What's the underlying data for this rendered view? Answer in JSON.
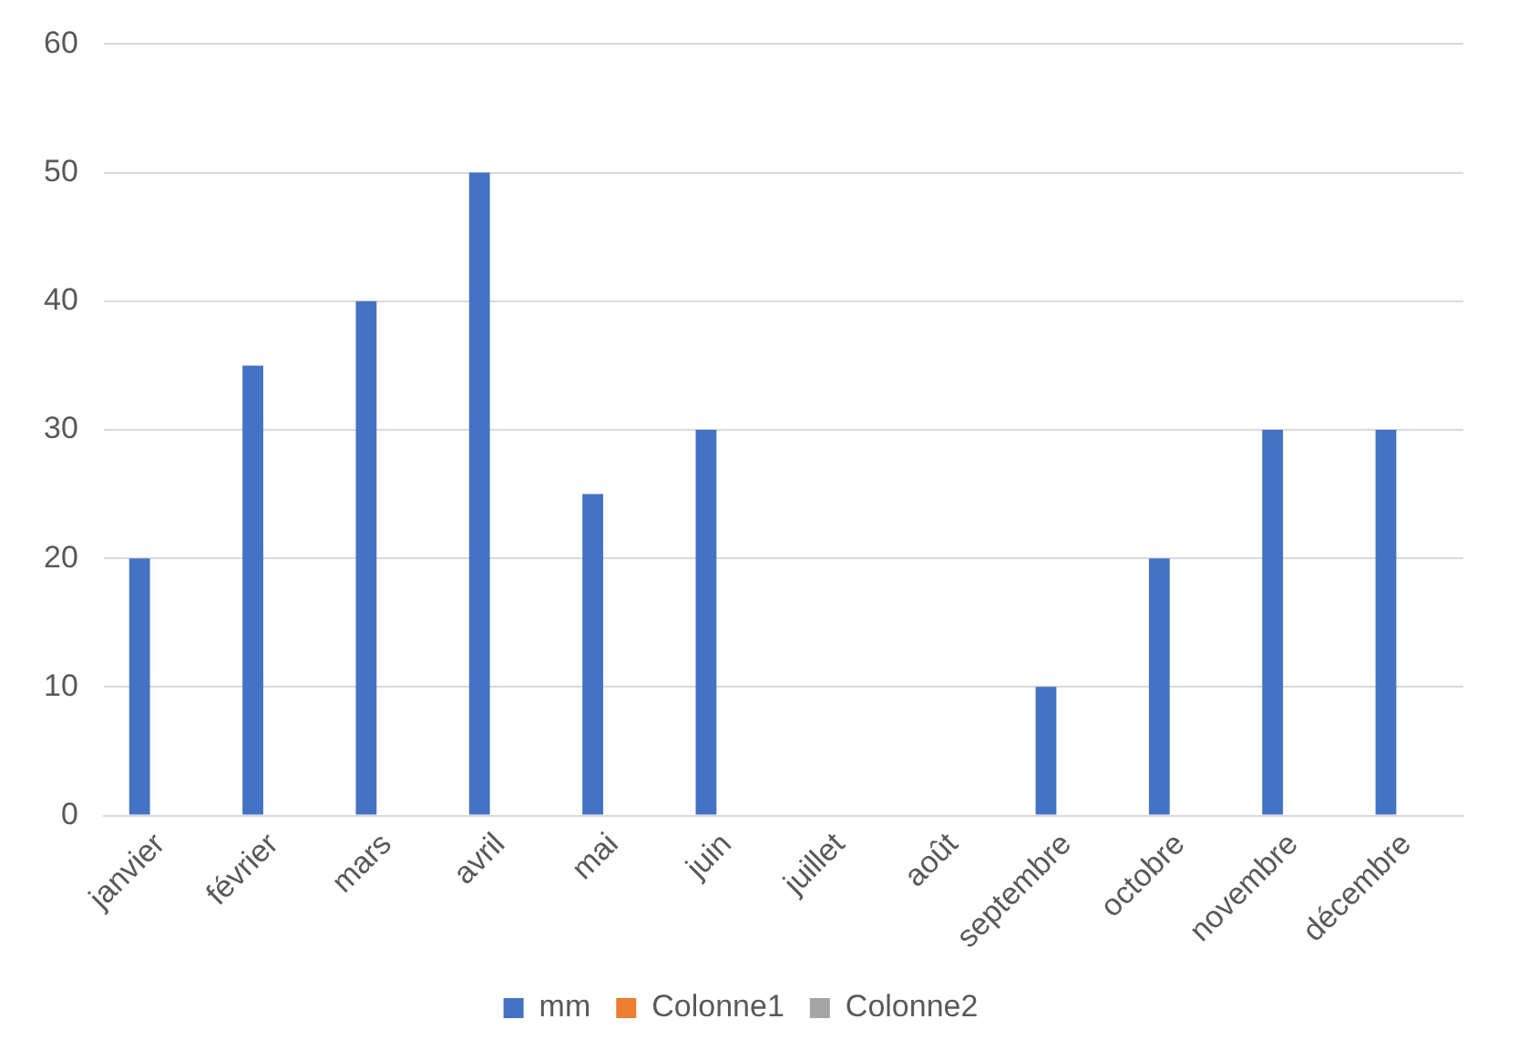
{
  "chart_data": {
    "type": "bar",
    "categories": [
      "janvier",
      "février",
      "mars",
      "avril",
      "mai",
      "juin",
      "juillet",
      "août",
      "septembre",
      "octobre",
      "novembre",
      "décembre"
    ],
    "series": [
      {
        "name": "mm",
        "color": "#4472c4",
        "values": [
          20,
          35,
          40,
          50,
          25,
          30,
          null,
          null,
          10,
          20,
          30,
          30
        ]
      },
      {
        "name": "Colonne1",
        "color": "#ed7d31",
        "values": [
          null,
          null,
          null,
          null,
          null,
          null,
          null,
          null,
          null,
          null,
          null,
          null
        ]
      },
      {
        "name": "Colonne2",
        "color": "#a5a5a5",
        "values": [
          null,
          null,
          null,
          null,
          null,
          null,
          null,
          null,
          null,
          null,
          null,
          null
        ]
      }
    ],
    "ylim": [
      0,
      60
    ],
    "yticks": [
      0,
      10,
      20,
      30,
      40,
      50,
      60
    ],
    "grid": "y",
    "legend": "bottom"
  }
}
